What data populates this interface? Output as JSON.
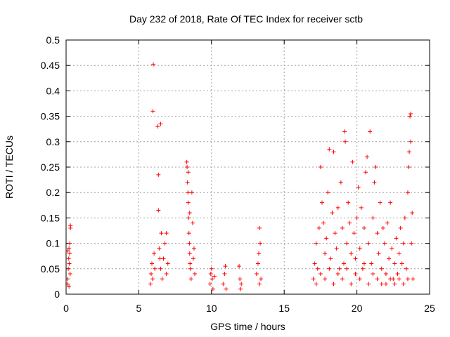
{
  "chart_data": {
    "type": "scatter",
    "title": "Day 232 of 2018, Rate Of TEC Index for receiver sctb",
    "xlabel": "GPS time / hours",
    "ylabel": "ROTI / TECUs",
    "xlim": [
      0,
      25
    ],
    "ylim": [
      0,
      0.5
    ],
    "xticks": [
      0,
      5,
      10,
      15,
      20,
      25
    ],
    "xtick_labels": [
      "0",
      "5",
      "10",
      "15",
      "20",
      "25"
    ],
    "yticks": [
      0,
      0.05,
      0.1,
      0.15,
      0.2,
      0.25,
      0.3,
      0.35,
      0.4,
      0.45,
      0.5
    ],
    "ytick_labels": [
      "0",
      "0.05",
      "0.1",
      "0.15",
      "0.2",
      "0.25",
      "0.3",
      "0.35",
      "0.4",
      "0.45",
      "0.5"
    ],
    "grid": true,
    "marker": "plus",
    "color": "#ff0000",
    "series": [
      {
        "name": "ROTI",
        "points": [
          [
            0.1,
            0.02
          ],
          [
            0.12,
            0.03
          ],
          [
            0.15,
            0.05
          ],
          [
            0.18,
            0.07
          ],
          [
            0.2,
            0.09
          ],
          [
            0.22,
            0.06
          ],
          [
            0.25,
            0.1
          ],
          [
            0.28,
            0.04
          ],
          [
            0.3,
            0.13
          ],
          [
            0.3,
            0.135
          ],
          [
            0.12,
            0.085
          ],
          [
            0.2,
            0.015
          ],
          [
            0.25,
            0.08
          ],
          [
            5.8,
            0.02
          ],
          [
            5.85,
            0.04
          ],
          [
            5.9,
            0.06
          ],
          [
            5.95,
            0.03
          ],
          [
            5.97,
            0.36
          ],
          [
            6.0,
            0.452
          ],
          [
            6.05,
            0.08
          ],
          [
            6.1,
            0.05
          ],
          [
            6.3,
            0.33
          ],
          [
            6.35,
            0.235
          ],
          [
            6.35,
            0.165
          ],
          [
            6.4,
            0.09
          ],
          [
            6.45,
            0.07
          ],
          [
            6.5,
            0.05
          ],
          [
            6.55,
            0.12
          ],
          [
            6.6,
            0.03
          ],
          [
            6.7,
            0.07
          ],
          [
            6.8,
            0.1
          ],
          [
            6.9,
            0.12
          ],
          [
            7.0,
            0.06
          ],
          [
            6.9,
            0.04
          ],
          [
            6.5,
            0.335
          ],
          [
            8.3,
            0.26
          ],
          [
            8.32,
            0.25
          ],
          [
            8.35,
            0.22
          ],
          [
            8.38,
            0.2
          ],
          [
            8.4,
            0.18
          ],
          [
            8.42,
            0.15
          ],
          [
            8.45,
            0.12
          ],
          [
            8.48,
            0.1
          ],
          [
            8.5,
            0.08
          ],
          [
            8.52,
            0.06
          ],
          [
            8.55,
            0.05
          ],
          [
            8.6,
            0.03
          ],
          [
            8.65,
            0.2
          ],
          [
            8.7,
            0.14
          ],
          [
            8.75,
            0.07
          ],
          [
            8.8,
            0.09
          ],
          [
            8.85,
            0.04
          ],
          [
            8.4,
            0.24
          ],
          [
            8.5,
            0.16
          ],
          [
            9.9,
            0.02
          ],
          [
            9.95,
            0.04
          ],
          [
            10.0,
            0.05
          ],
          [
            10.05,
            0.03
          ],
          [
            10.1,
            0.01
          ],
          [
            10.2,
            0.035
          ],
          [
            10.8,
            0.02
          ],
          [
            10.9,
            0.04
          ],
          [
            10.95,
            0.055
          ],
          [
            11.0,
            0.01
          ],
          [
            11.9,
            0.055
          ],
          [
            11.95,
            0.03
          ],
          [
            12.0,
            0.01
          ],
          [
            12.05,
            0.02
          ],
          [
            13.1,
            0.04
          ],
          [
            13.2,
            0.06
          ],
          [
            13.25,
            0.08
          ],
          [
            13.3,
            0.13
          ],
          [
            13.35,
            0.1
          ],
          [
            13.4,
            0.03
          ],
          [
            13.3,
            0.02
          ],
          [
            17.0,
            0.03
          ],
          [
            17.1,
            0.06
          ],
          [
            17.2,
            0.1
          ],
          [
            17.3,
            0.05
          ],
          [
            17.4,
            0.13
          ],
          [
            17.5,
            0.25
          ],
          [
            17.6,
            0.18
          ],
          [
            17.7,
            0.14
          ],
          [
            17.8,
            0.08
          ],
          [
            17.9,
            0.11
          ],
          [
            18.0,
            0.2
          ],
          [
            18.1,
            0.285
          ],
          [
            18.2,
            0.07
          ],
          [
            18.3,
            0.16
          ],
          [
            18.4,
            0.28
          ],
          [
            18.5,
            0.12
          ],
          [
            18.6,
            0.09
          ],
          [
            18.7,
            0.17
          ],
          [
            18.8,
            0.05
          ],
          [
            18.9,
            0.22
          ],
          [
            19.0,
            0.13
          ],
          [
            19.1,
            0.06
          ],
          [
            19.15,
            0.32
          ],
          [
            19.2,
            0.3
          ],
          [
            19.3,
            0.1
          ],
          [
            19.4,
            0.18
          ],
          [
            19.5,
            0.14
          ],
          [
            19.6,
            0.08
          ],
          [
            19.7,
            0.26
          ],
          [
            19.8,
            0.12
          ],
          [
            19.9,
            0.07
          ],
          [
            20.0,
            0.15
          ],
          [
            20.1,
            0.21
          ],
          [
            20.2,
            0.09
          ],
          [
            20.3,
            0.17
          ],
          [
            20.4,
            0.05
          ],
          [
            20.5,
            0.13
          ],
          [
            20.6,
            0.24
          ],
          [
            20.7,
            0.27
          ],
          [
            20.8,
            0.1
          ],
          [
            20.9,
            0.32
          ],
          [
            21.0,
            0.06
          ],
          [
            21.1,
            0.15
          ],
          [
            21.2,
            0.22
          ],
          [
            21.3,
            0.25
          ],
          [
            21.4,
            0.12
          ],
          [
            21.5,
            0.08
          ],
          [
            21.6,
            0.18
          ],
          [
            21.7,
            0.05
          ],
          [
            21.8,
            0.13
          ],
          [
            21.9,
            0.1
          ],
          [
            22.0,
            0.04
          ],
          [
            22.1,
            0.14
          ],
          [
            22.2,
            0.07
          ],
          [
            22.3,
            0.18
          ],
          [
            22.4,
            0.09
          ],
          [
            22.5,
            0.03
          ],
          [
            22.6,
            0.06
          ],
          [
            22.7,
            0.11
          ],
          [
            22.8,
            0.04
          ],
          [
            22.9,
            0.08
          ],
          [
            23.0,
            0.13
          ],
          [
            23.1,
            0.06
          ],
          [
            23.2,
            0.1
          ],
          [
            23.3,
            0.15
          ],
          [
            23.4,
            0.05
          ],
          [
            23.5,
            0.2
          ],
          [
            23.55,
            0.25
          ],
          [
            23.6,
            0.28
          ],
          [
            23.65,
            0.35
          ],
          [
            23.7,
            0.355
          ],
          [
            23.75,
            0.1
          ],
          [
            23.8,
            0.16
          ],
          [
            23.85,
            0.03
          ],
          [
            23.7,
            0.3
          ],
          [
            17.2,
            0.02
          ],
          [
            17.5,
            0.04
          ],
          [
            17.8,
            0.03
          ],
          [
            18.1,
            0.05
          ],
          [
            18.4,
            0.02
          ],
          [
            18.7,
            0.04
          ],
          [
            19.0,
            0.03
          ],
          [
            19.3,
            0.05
          ],
          [
            19.6,
            0.02
          ],
          [
            19.9,
            0.04
          ],
          [
            20.2,
            0.03
          ],
          [
            20.5,
            0.06
          ],
          [
            20.8,
            0.02
          ],
          [
            21.1,
            0.04
          ],
          [
            21.4,
            0.03
          ],
          [
            21.7,
            0.02
          ],
          [
            22.0,
            0.02
          ],
          [
            22.3,
            0.03
          ],
          [
            22.6,
            0.02
          ],
          [
            22.9,
            0.03
          ],
          [
            23.2,
            0.02
          ],
          [
            23.5,
            0.03
          ]
        ]
      }
    ]
  }
}
